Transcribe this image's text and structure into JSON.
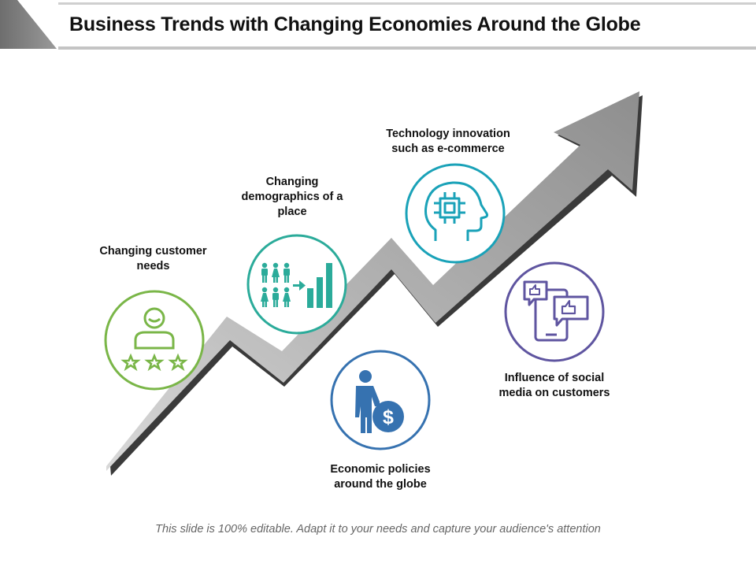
{
  "title": "Business Trends with Changing Economies Around the Globe",
  "colors": {
    "green": "#7ab648",
    "teal": "#2bab9a",
    "cyan": "#1aa2b8",
    "blue": "#3672b0",
    "purple": "#5f55a0",
    "arrow_gray": "#a8a8a8"
  },
  "items": [
    {
      "label": "Changing customer needs",
      "icon": "customer-rating-icon",
      "color": "green"
    },
    {
      "label": "Changing demographics of a place",
      "icon": "demographics-growth-icon",
      "color": "teal"
    },
    {
      "label": "Technology innovation such as e-commerce",
      "icon": "ai-head-chip-icon",
      "color": "cyan"
    },
    {
      "label": "Economic policies around the globe",
      "icon": "businessman-dollar-icon",
      "color": "blue"
    },
    {
      "label": "Influence of social media on customers",
      "icon": "social-media-likes-icon",
      "color": "purple"
    }
  ],
  "footer": "This slide is 100% editable. Adapt it to your needs and capture your audience's attention"
}
